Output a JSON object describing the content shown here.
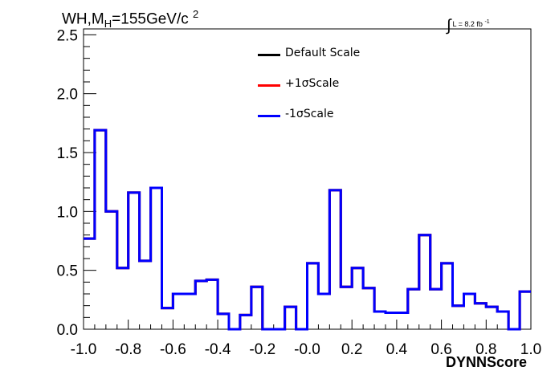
{
  "title": {
    "main": "WH,M",
    "sub": "H",
    "rest": "=155GeV/c",
    "sup": "2"
  },
  "luminosity": {
    "integral": "∫",
    "text": "L = 8.2 fb",
    "sup": "-1"
  },
  "xlabel": "DYNNScore",
  "legend": [
    {
      "label": "Default Scale",
      "color": "#000000"
    },
    {
      "label": "+1σScale",
      "color": "#ff0000"
    },
    {
      "label": "-1σScale",
      "color": "#0000ff"
    }
  ],
  "chart_data": {
    "type": "step",
    "title": "WH,MH=155GeV/c2",
    "xlabel": "DYNNScore",
    "ylabel": "",
    "xlim": [
      -1.0,
      1.0
    ],
    "ylim": [
      0.0,
      2.55
    ],
    "x_ticks": [
      "-1.0",
      "-0.8",
      "-0.6",
      "-0.4",
      "-0.2",
      "-0.0",
      "0.2",
      "0.4",
      "0.6",
      "0.8",
      "1.0"
    ],
    "y_ticks": [
      "0.0",
      "0.5",
      "1.0",
      "1.5",
      "2.0",
      "2.5"
    ],
    "bin_edges": [
      -1.0,
      -0.95,
      -0.9,
      -0.85,
      -0.8,
      -0.75,
      -0.7,
      -0.65,
      -0.6,
      -0.55,
      -0.5,
      -0.45,
      -0.4,
      -0.35,
      -0.3,
      -0.25,
      -0.2,
      -0.15,
      -0.1,
      -0.05,
      0.0,
      0.05,
      0.1,
      0.15,
      0.2,
      0.25,
      0.3,
      0.35,
      0.4,
      0.45,
      0.5,
      0.55,
      0.6,
      0.65,
      0.7,
      0.75,
      0.8,
      0.85,
      0.9,
      0.95,
      1.0
    ],
    "series": [
      {
        "name": "Default Scale",
        "color": "#000000",
        "values": [
          0.77,
          1.69,
          1.0,
          0.52,
          1.16,
          0.58,
          1.2,
          0.18,
          0.3,
          0.3,
          0.41,
          0.42,
          0.13,
          0.0,
          0.12,
          0.36,
          0.0,
          0.0,
          0.19,
          0.0,
          0.56,
          0.3,
          1.18,
          0.36,
          0.52,
          0.35,
          0.15,
          0.14,
          0.14,
          0.34,
          0.8,
          0.34,
          0.56,
          0.2,
          0.3,
          0.22,
          0.19,
          0.15,
          0.0,
          0.32
        ]
      },
      {
        "name": "+1σScale",
        "color": "#ff0000",
        "values": [
          0.77,
          1.69,
          1.0,
          0.52,
          1.16,
          0.58,
          1.2,
          0.18,
          0.3,
          0.3,
          0.41,
          0.42,
          0.13,
          0.0,
          0.12,
          0.36,
          0.0,
          0.0,
          0.19,
          0.0,
          0.56,
          0.3,
          1.18,
          0.36,
          0.52,
          0.35,
          0.15,
          0.14,
          0.14,
          0.34,
          0.8,
          0.34,
          0.56,
          0.2,
          0.3,
          0.22,
          0.19,
          0.15,
          0.0,
          0.32
        ]
      },
      {
        "name": "-1σScale",
        "color": "#0000ff",
        "values": [
          0.77,
          1.69,
          1.0,
          0.52,
          1.16,
          0.58,
          1.2,
          0.18,
          0.3,
          0.3,
          0.41,
          0.42,
          0.13,
          0.0,
          0.12,
          0.36,
          0.0,
          0.0,
          0.19,
          0.0,
          0.56,
          0.3,
          1.18,
          0.36,
          0.52,
          0.35,
          0.15,
          0.14,
          0.14,
          0.34,
          0.8,
          0.34,
          0.56,
          0.2,
          0.3,
          0.22,
          0.19,
          0.15,
          0.0,
          0.32
        ]
      }
    ],
    "grid": false,
    "legend_position": "top-center"
  }
}
